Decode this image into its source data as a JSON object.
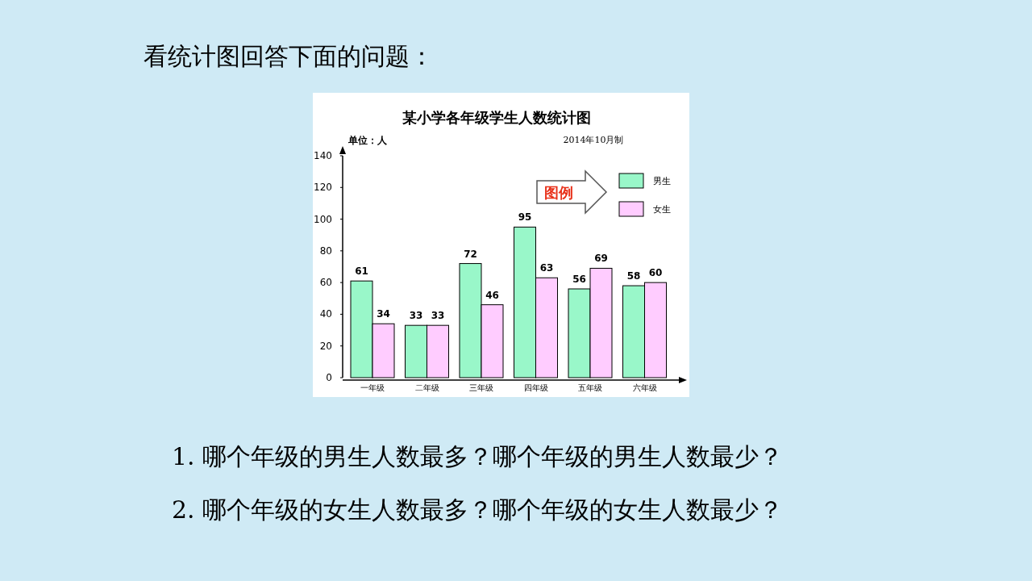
{
  "chart_data": {
    "type": "bar",
    "title": "某小学各年级学生人数统计图",
    "ylabel": "单位：人",
    "legend_title": "图例",
    "categories": [
      "一年级",
      "二年级",
      "三年级",
      "四年级",
      "五年级",
      "六年级"
    ],
    "series": [
      {
        "name": "男生",
        "color": "#99f7c9",
        "values": [
          61,
          33,
          72,
          95,
          56,
          58
        ]
      },
      {
        "name": "女生",
        "color": "#ffccff",
        "values": [
          34,
          33,
          46,
          63,
          69,
          60
        ]
      }
    ],
    "ylim": [
      0,
      140
    ],
    "yticks": [
      0,
      20,
      40,
      60,
      80,
      100,
      120,
      140
    ],
    "data_labels": true,
    "legend": "top right",
    "annotations": [
      "看统计图回答下面的问题：",
      "2014年10月制",
      "1. 哪个年级的男生人数最多？哪个年级的男生人数最少？",
      "2. 哪个年级的女生人数最多？哪个年级的女生人数最少？"
    ]
  }
}
